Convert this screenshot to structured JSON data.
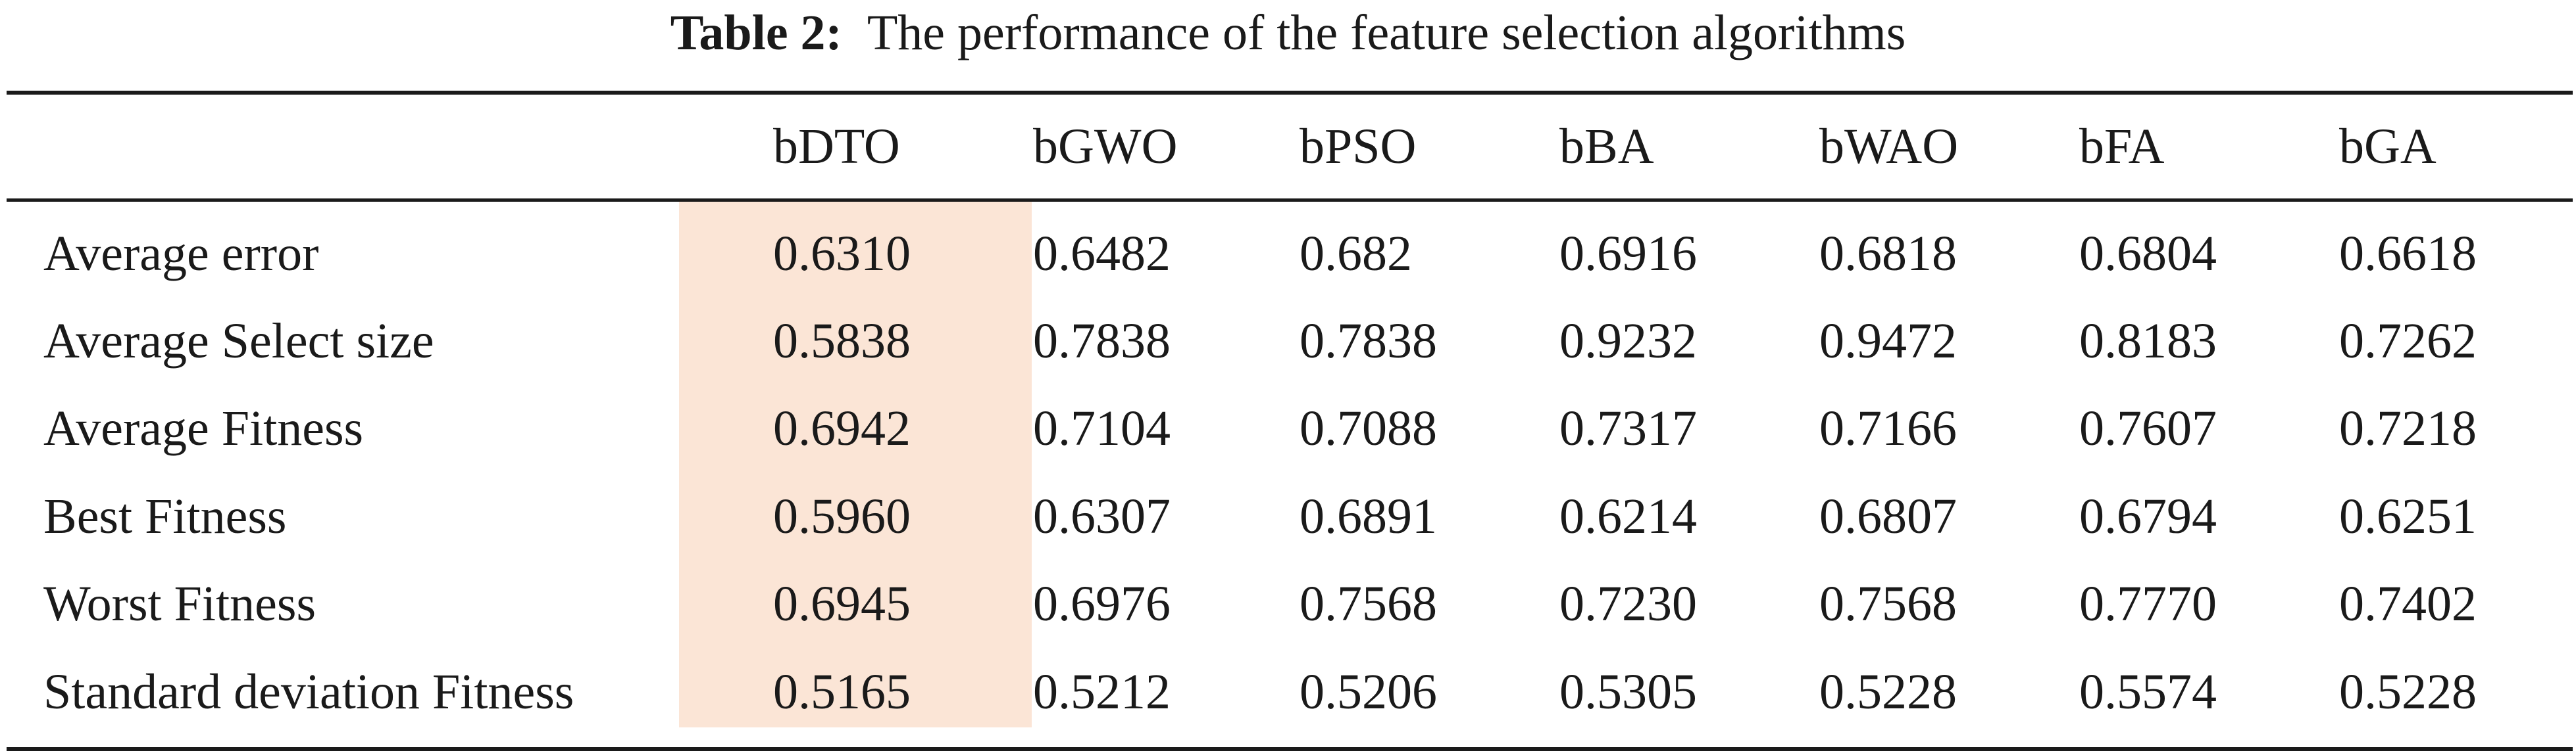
{
  "caption": {
    "label": "Table 2:",
    "text": "The performance of the feature selection algorithms"
  },
  "table": {
    "columns": [
      "bDTO",
      "bGWO",
      "bPSO",
      "bBA",
      "bWAO",
      "bFA",
      "bGA"
    ],
    "highlighted_column": "bDTO",
    "highlight_color": "#fbe5d6",
    "rows": [
      {
        "label": "Average error",
        "values": [
          "0.6310",
          "0.6482",
          "0.682",
          "0.6916",
          "0.6818",
          "0.6804",
          "0.6618"
        ]
      },
      {
        "label": "Average Select size",
        "values": [
          "0.5838",
          "0.7838",
          "0.7838",
          "0.9232",
          "0.9472",
          "0.8183",
          "0.7262"
        ]
      },
      {
        "label": "Average Fitness",
        "values": [
          "0.6942",
          "0.7104",
          "0.7088",
          "0.7317",
          "0.7166",
          "0.7607",
          "0.7218"
        ]
      },
      {
        "label": "Best Fitness",
        "values": [
          "0.5960",
          "0.6307",
          "0.6891",
          "0.6214",
          "0.6807",
          "0.6794",
          "0.6251"
        ]
      },
      {
        "label": "Worst Fitness",
        "values": [
          "0.6945",
          "0.6976",
          "0.7568",
          "0.7230",
          "0.7568",
          "0.7770",
          "0.7402"
        ]
      },
      {
        "label": "Standard deviation Fitness",
        "values": [
          "0.5165",
          "0.5212",
          "0.5206",
          "0.5305",
          "0.5228",
          "0.5574",
          "0.5228"
        ]
      }
    ]
  }
}
